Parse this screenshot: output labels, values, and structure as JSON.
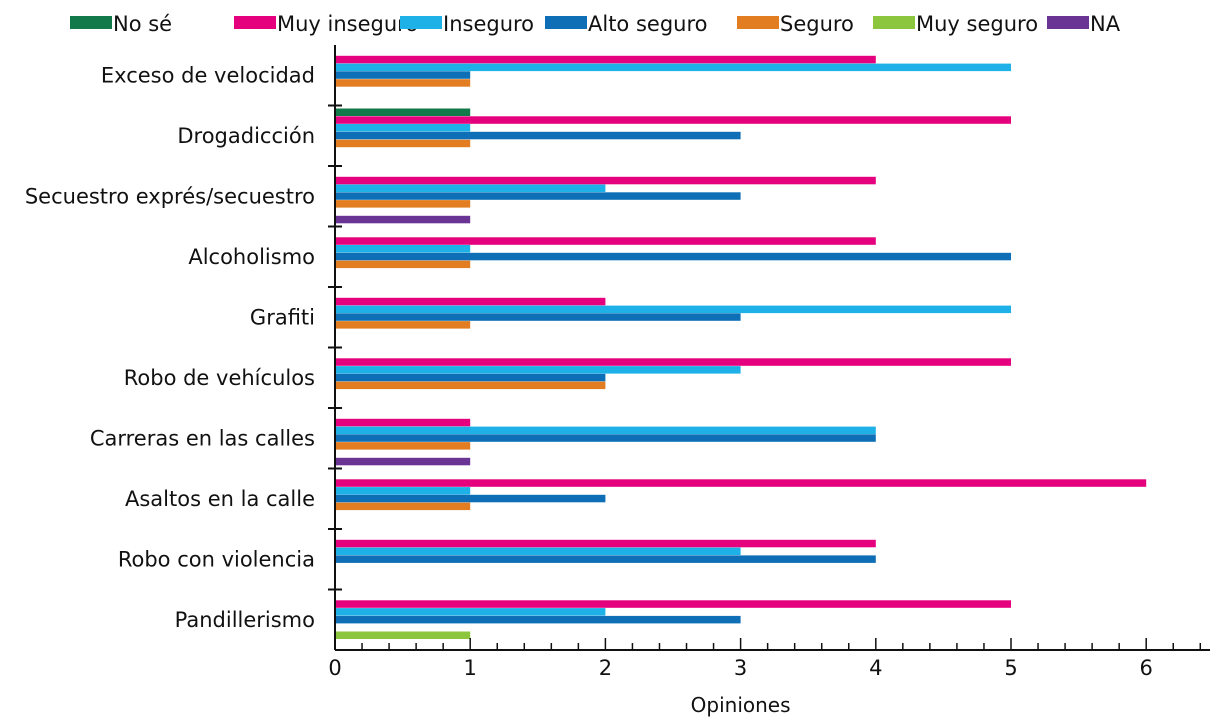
{
  "chart_data": {
    "type": "bar",
    "orientation": "horizontal",
    "xlabel": "Opiniones",
    "ylabel": "",
    "xlim": [
      0,
      6.5
    ],
    "xticks": [
      0,
      1,
      2,
      3,
      4,
      5,
      6
    ],
    "legend_position": "top",
    "grid": false,
    "categories": [
      "Exceso de velocidad",
      "Drogadicción",
      "Secuestro exprés/secuestro",
      "Alcoholismo",
      "Grafiti",
      "Robo de vehículos",
      "Carreras en las calles",
      "Asaltos en la calle",
      "Robo con violencia",
      "Pandillerismo"
    ],
    "series": [
      {
        "name": "No sé",
        "color": "#127a4a",
        "values": [
          0,
          1,
          0,
          0,
          0,
          0,
          0,
          0,
          0,
          0
        ]
      },
      {
        "name": "Muy inseguro",
        "color": "#e5007e",
        "values": [
          4,
          5,
          4,
          4,
          2,
          5,
          1,
          6,
          4,
          5
        ]
      },
      {
        "name": "Inseguro",
        "color": "#1eb1e7",
        "values": [
          5,
          1,
          2,
          1,
          5,
          3,
          4,
          1,
          3,
          2
        ]
      },
      {
        "name": "Alto seguro",
        "color": "#0f6fb6",
        "values": [
          1,
          3,
          3,
          5,
          3,
          2,
          4,
          2,
          4,
          3
        ]
      },
      {
        "name": "Seguro",
        "color": "#e27d22",
        "values": [
          1,
          1,
          1,
          1,
          1,
          2,
          1,
          1,
          0,
          0
        ]
      },
      {
        "name": "Muy seguro",
        "color": "#8cc63f",
        "values": [
          0,
          0,
          0,
          0,
          0,
          0,
          0,
          0,
          0,
          1
        ]
      },
      {
        "name": "NA",
        "color": "#6a3495",
        "values": [
          0,
          0,
          1,
          0,
          0,
          0,
          1,
          0,
          0,
          0
        ]
      }
    ]
  }
}
